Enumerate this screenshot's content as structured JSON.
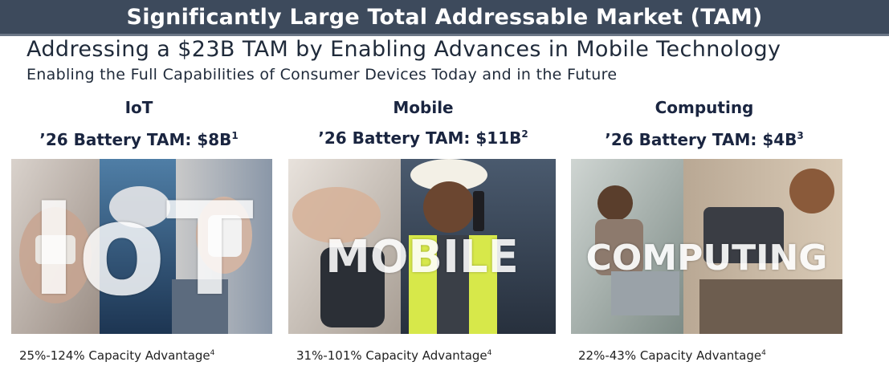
{
  "header": {
    "title": "Significantly Large Total Addressable Market (TAM)",
    "subtitle": "Addressing a $23B TAM by Enabling Advances in Mobile Technology",
    "tagline": "Enabling the Full Capabilities of Consumer Devices Today and in the Future"
  },
  "columns": [
    {
      "name": "IoT",
      "tam_label": "’26 Battery TAM: $8B",
      "tam_footnote": "1",
      "overlay_word": "IoT",
      "caption": "25%-124% Capacity Advantage",
      "caption_footnote": "4"
    },
    {
      "name": "Mobile",
      "tam_label": "’26 Battery TAM: $11B",
      "tam_footnote": "2",
      "overlay_word": "MOBILE",
      "caption": "31%-101% Capacity Advantage",
      "caption_footnote": "4"
    },
    {
      "name": "Computing",
      "tam_label": "’26 Battery TAM: $4B",
      "tam_footnote": "3",
      "overlay_word": "COMPUTING",
      "caption": "22%-43% Capacity Advantage",
      "caption_footnote": "4"
    }
  ],
  "colors": {
    "banner_bg": "#3d4a5c",
    "heading_text": "#1a2540"
  }
}
